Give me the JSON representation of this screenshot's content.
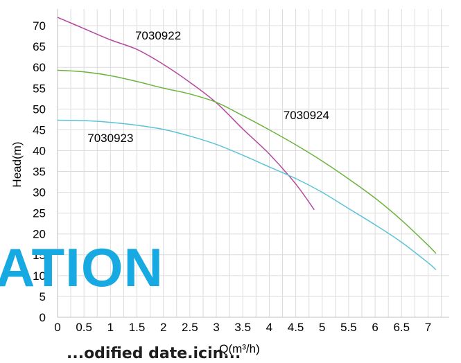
{
  "chart_data": {
    "type": "line",
    "title": "",
    "xlabel": "Q(m³/h)",
    "ylabel": "Head(m)",
    "xlim": [
      0,
      7.4
    ],
    "ylim": [
      0,
      74
    ],
    "x_ticks": [
      "0",
      "0.5",
      "1",
      "1.5",
      "2",
      "2.5",
      "3",
      "3.5",
      "4",
      "4.5",
      "5",
      "5.5",
      "6",
      "6.5",
      "7"
    ],
    "y_ticks": [
      "0",
      "5",
      "10",
      "15",
      "20",
      "25",
      "30",
      "35",
      "40",
      "45",
      "50",
      "55",
      "60",
      "65",
      "70"
    ],
    "grid": true,
    "series": [
      {
        "name": "7030922",
        "color": "#b5479e",
        "points": [
          [
            0,
            72
          ],
          [
            0.5,
            69.3
          ],
          [
            1.0,
            66.6
          ],
          [
            1.5,
            64.3
          ],
          [
            2.0,
            60.7
          ],
          [
            2.5,
            56.4
          ],
          [
            3.0,
            51.5
          ],
          [
            3.5,
            45.2
          ],
          [
            4.0,
            39.2
          ],
          [
            4.5,
            32.0
          ],
          [
            4.85,
            25.8
          ]
        ]
      },
      {
        "name": "7030924",
        "color": "#6cb33f",
        "points": [
          [
            0,
            59.3
          ],
          [
            0.5,
            58.9
          ],
          [
            1.0,
            58.0
          ],
          [
            1.5,
            56.6
          ],
          [
            2.0,
            55.0
          ],
          [
            2.5,
            53.6
          ],
          [
            3.0,
            51.6
          ],
          [
            3.5,
            48.4
          ],
          [
            4.0,
            45.0
          ],
          [
            4.5,
            41.4
          ],
          [
            5.0,
            37.5
          ],
          [
            5.5,
            33.2
          ],
          [
            6.0,
            28.6
          ],
          [
            6.5,
            23.3
          ],
          [
            7.0,
            17.3
          ],
          [
            7.15,
            15.3
          ]
        ]
      },
      {
        "name": "7030923",
        "color": "#5bc3d8",
        "points": [
          [
            0,
            47.3
          ],
          [
            0.5,
            47.2
          ],
          [
            1.0,
            46.8
          ],
          [
            1.5,
            46.1
          ],
          [
            2.0,
            45.1
          ],
          [
            2.5,
            43.5
          ],
          [
            3.0,
            41.5
          ],
          [
            3.5,
            38.9
          ],
          [
            4.0,
            36.1
          ],
          [
            4.5,
            33.3
          ],
          [
            5.0,
            30.0
          ],
          [
            5.5,
            26.1
          ],
          [
            6.0,
            22.2
          ],
          [
            6.5,
            18.0
          ],
          [
            7.0,
            13.1
          ],
          [
            7.15,
            11.4
          ]
        ]
      }
    ],
    "annotations": [
      {
        "text": "7030922",
        "x": 1.9,
        "y": 66.7
      },
      {
        "text": "7030924",
        "x": 4.7,
        "y": 47.6
      },
      {
        "text": "7030923",
        "x": 1.0,
        "y": 42.1
      }
    ]
  },
  "watermark": {
    "text": "ATION",
    "color": "#17a9e1",
    "subtext": "...odified date.icin..."
  }
}
